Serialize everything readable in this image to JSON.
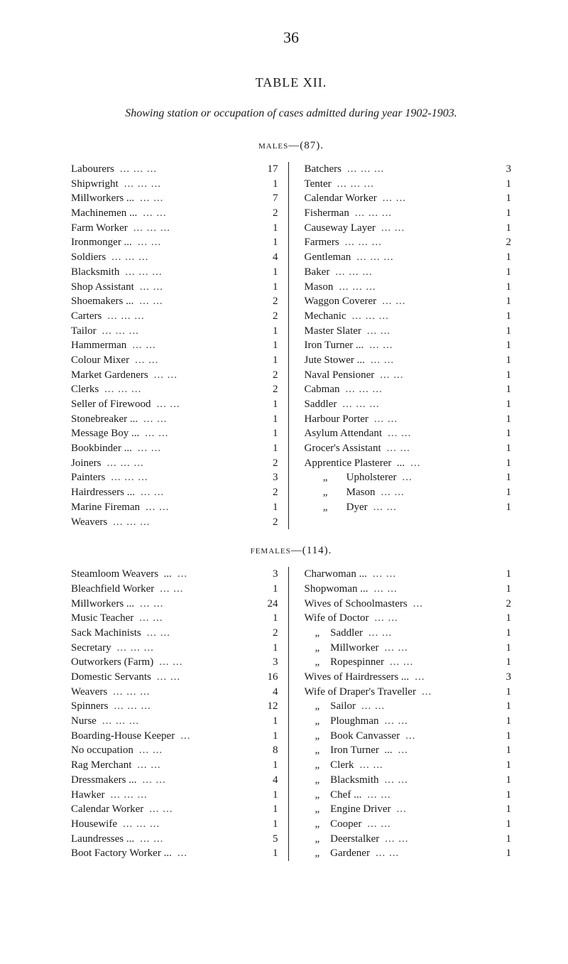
{
  "page": {
    "number": "36",
    "table_title": "TABLE  XII.",
    "subtitle": "Showing station or occupation of cases admitted during year 1902-1903.",
    "dots2": "...",
    "dots3": "...",
    "background_color": "#ffffff",
    "text_color": "#1a1a1a",
    "base_font_size_pt": 11
  },
  "males": {
    "heading": "males—(87).",
    "left": [
      {
        "label": "Labourers",
        "dots": 3,
        "value": "17"
      },
      {
        "label": "Shipwright",
        "dots": 3,
        "value": "1"
      },
      {
        "label": "Millworkers ...",
        "dots": 2,
        "value": "7"
      },
      {
        "label": "Machinemen ...",
        "dots": 2,
        "value": "2"
      },
      {
        "label": "Farm Worker",
        "dots": 3,
        "value": "1"
      },
      {
        "label": "Ironmonger ...",
        "dots": 2,
        "value": "1"
      },
      {
        "label": "Soldiers",
        "dots": 3,
        "value": "4"
      },
      {
        "label": "Blacksmith",
        "dots": 3,
        "value": "1"
      },
      {
        "label": "Shop Assistant",
        "dots": 2,
        "value": "1"
      },
      {
        "label": "Shoemakers ...",
        "dots": 2,
        "value": "2"
      },
      {
        "label": "Carters",
        "dots": 3,
        "value": "2"
      },
      {
        "label": "Tailor",
        "dots": 3,
        "value": "1"
      },
      {
        "label": "Hammerman",
        "dots": 2,
        "value": "1"
      },
      {
        "label": "Colour Mixer",
        "dots": 2,
        "value": "1"
      },
      {
        "label": "Market Gardeners",
        "dots": 2,
        "value": "2"
      },
      {
        "label": "Clerks",
        "dots": 3,
        "value": "2"
      },
      {
        "label": "Seller of Firewood",
        "dots": 2,
        "value": "1"
      },
      {
        "label": "Stonebreaker ...",
        "dots": 2,
        "value": "1"
      },
      {
        "label": "Message Boy ...",
        "dots": 2,
        "value": "1"
      },
      {
        "label": "Bookbinder ...",
        "dots": 2,
        "value": "1"
      },
      {
        "label": "Joiners",
        "dots": 3,
        "value": "2"
      },
      {
        "label": "Painters",
        "dots": 3,
        "value": "3"
      },
      {
        "label": "Hairdressers ...",
        "dots": 2,
        "value": "2"
      },
      {
        "label": "Marine Fireman",
        "dots": 2,
        "value": "1"
      },
      {
        "label": "Weavers",
        "dots": 3,
        "value": "2"
      }
    ],
    "right": [
      {
        "label": "Batchers",
        "dots": 3,
        "value": "3"
      },
      {
        "label": "Tenter",
        "dots": 3,
        "value": "1"
      },
      {
        "label": "Calendar Worker",
        "dots": 2,
        "value": "1"
      },
      {
        "label": "Fisherman",
        "dots": 3,
        "value": "1"
      },
      {
        "label": "Causeway Layer",
        "dots": 2,
        "value": "1"
      },
      {
        "label": "Farmers",
        "dots": 3,
        "value": "2"
      },
      {
        "label": "Gentleman",
        "dots": 3,
        "value": "1"
      },
      {
        "label": "Baker",
        "dots": 3,
        "value": "1"
      },
      {
        "label": "Mason",
        "dots": 3,
        "value": "1"
      },
      {
        "label": "Waggon Coverer",
        "dots": 2,
        "value": "1"
      },
      {
        "label": "Mechanic",
        "dots": 3,
        "value": "1"
      },
      {
        "label": "Master Slater",
        "dots": 2,
        "value": "1"
      },
      {
        "label": "Iron Turner ...",
        "dots": 2,
        "value": "1"
      },
      {
        "label": "Jute Stower ...",
        "dots": 2,
        "value": "1"
      },
      {
        "label": "Naval Pensioner",
        "dots": 2,
        "value": "1"
      },
      {
        "label": "Cabman",
        "dots": 3,
        "value": "1"
      },
      {
        "label": "Saddler",
        "dots": 3,
        "value": "1"
      },
      {
        "label": "Harbour Porter",
        "dots": 2,
        "value": "1"
      },
      {
        "label": "Asylum Attendant",
        "dots": 2,
        "value": "1"
      },
      {
        "label": "Grocer's Assistant",
        "dots": 2,
        "value": "1"
      },
      {
        "label": "Apprentice Plasterer  ...",
        "dots": 1,
        "value": "1"
      },
      {
        "label": "       „       Upholsterer",
        "dots": 1,
        "value": "1"
      },
      {
        "label": "       „       Mason",
        "dots": 2,
        "value": "1"
      },
      {
        "label": "       „       Dyer",
        "dots": 2,
        "value": "1"
      }
    ]
  },
  "females": {
    "heading": "females—(114).",
    "left": [
      {
        "label": "Steamloom Weavers  ...",
        "dots": 1,
        "value": "3"
      },
      {
        "label": "Bleachfield Worker",
        "dots": 2,
        "value": "1"
      },
      {
        "label": "Millworkers ...",
        "dots": 2,
        "value": "24"
      },
      {
        "label": "Music Teacher",
        "dots": 2,
        "value": "1"
      },
      {
        "label": "Sack Machinists",
        "dots": 2,
        "value": "2"
      },
      {
        "label": "Secretary",
        "dots": 3,
        "value": "1"
      },
      {
        "label": "Outworkers (Farm)",
        "dots": 2,
        "value": "3"
      },
      {
        "label": "Domestic Servants",
        "dots": 2,
        "value": "16"
      },
      {
        "label": "Weavers",
        "dots": 3,
        "value": "4"
      },
      {
        "label": "Spinners",
        "dots": 3,
        "value": "12"
      },
      {
        "label": "Nurse",
        "dots": 3,
        "value": "1"
      },
      {
        "label": "Boarding-House Keeper",
        "dots": 1,
        "value": "1"
      },
      {
        "label": "No occupation",
        "dots": 2,
        "value": "8"
      },
      {
        "label": "Rag Merchant",
        "dots": 2,
        "value": "1"
      },
      {
        "label": "Dressmakers ...",
        "dots": 2,
        "value": "4"
      },
      {
        "label": "Hawker",
        "dots": 3,
        "value": "1"
      },
      {
        "label": "Calendar Worker",
        "dots": 2,
        "value": "1"
      },
      {
        "label": "Housewife",
        "dots": 3,
        "value": "1"
      },
      {
        "label": "Laundresses ...",
        "dots": 2,
        "value": "5"
      },
      {
        "label": "Boot Factory Worker ...",
        "dots": 1,
        "value": "1"
      }
    ],
    "right": [
      {
        "label": "Charwoman ...",
        "dots": 2,
        "value": "1"
      },
      {
        "label": "Shopwoman ...",
        "dots": 2,
        "value": "1"
      },
      {
        "label": "Wives of Schoolmasters",
        "dots": 1,
        "value": "2"
      },
      {
        "label": "Wife of Doctor",
        "dots": 2,
        "value": "1"
      },
      {
        "label": "    „    Saddler",
        "dots": 2,
        "value": "1"
      },
      {
        "label": "    „    Millworker",
        "dots": 2,
        "value": "1"
      },
      {
        "label": "    „    Ropespinner",
        "dots": 2,
        "value": "1"
      },
      {
        "label": "Wives of Hairdressers ...",
        "dots": 1,
        "value": "3"
      },
      {
        "label": "Wife of Draper's Traveller",
        "dots": 1,
        "value": "1"
      },
      {
        "label": "    „    Sailor",
        "dots": 2,
        "value": "1"
      },
      {
        "label": "    „    Ploughman",
        "dots": 2,
        "value": "1"
      },
      {
        "label": "    „    Book Canvasser",
        "dots": 1,
        "value": "1"
      },
      {
        "label": "    „    Iron Turner  ...",
        "dots": 1,
        "value": "1"
      },
      {
        "label": "    „    Clerk",
        "dots": 2,
        "value": "1"
      },
      {
        "label": "    „    Blacksmith",
        "dots": 2,
        "value": "1"
      },
      {
        "label": "    „    Chef ...",
        "dots": 2,
        "value": "1"
      },
      {
        "label": "    „    Engine Driver",
        "dots": 1,
        "value": "1"
      },
      {
        "label": "    „    Cooper",
        "dots": 2,
        "value": "1"
      },
      {
        "label": "    „    Deerstalker",
        "dots": 2,
        "value": "1"
      },
      {
        "label": "    „    Gardener",
        "dots": 2,
        "value": "1"
      }
    ]
  }
}
